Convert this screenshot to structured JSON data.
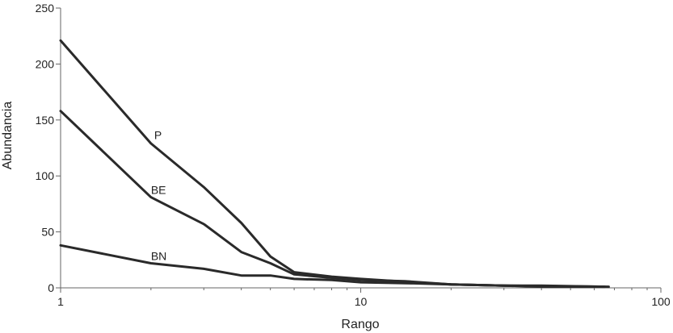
{
  "chart_data": {
    "type": "line",
    "xlabel": "Rango",
    "ylabel": "Abundancia",
    "xscale": "log",
    "xlim": [
      1,
      100
    ],
    "ylim": [
      0,
      250
    ],
    "xticks": [
      1,
      10,
      100
    ],
    "yticks": [
      0,
      50,
      100,
      150,
      200,
      250
    ],
    "grid": false,
    "series": [
      {
        "name": "P",
        "points": [
          [
            1,
            221
          ],
          [
            2,
            129
          ],
          [
            3,
            90
          ],
          [
            4,
            58
          ],
          [
            5,
            28
          ],
          [
            6,
            14
          ],
          [
            8,
            10
          ],
          [
            10,
            8
          ],
          [
            15,
            5
          ],
          [
            20,
            3
          ],
          [
            30,
            2
          ],
          [
            40,
            1
          ],
          [
            65,
            1
          ]
        ]
      },
      {
        "name": "BE",
        "points": [
          [
            1,
            158
          ],
          [
            2,
            81
          ],
          [
            3,
            57
          ],
          [
            4,
            32
          ],
          [
            5,
            22
          ],
          [
            6,
            12
          ],
          [
            8,
            9
          ],
          [
            10,
            7
          ],
          [
            14,
            6
          ],
          [
            20,
            3
          ],
          [
            30,
            2
          ],
          [
            40,
            2
          ],
          [
            65,
            1
          ]
        ]
      },
      {
        "name": "BN",
        "points": [
          [
            1,
            38
          ],
          [
            2,
            22
          ],
          [
            3,
            17
          ],
          [
            4,
            11
          ],
          [
            5,
            11
          ],
          [
            6,
            8
          ],
          [
            8,
            7
          ],
          [
            10,
            5
          ],
          [
            15,
            4
          ],
          [
            20,
            3
          ],
          [
            30,
            2
          ],
          [
            67,
            1
          ]
        ]
      }
    ],
    "labels": [
      {
        "text": "P",
        "x": 2.05,
        "y": 133
      },
      {
        "text": "BE",
        "x": 2.0,
        "y": 84
      },
      {
        "text": "BN",
        "x": 2.0,
        "y": 25
      }
    ]
  }
}
